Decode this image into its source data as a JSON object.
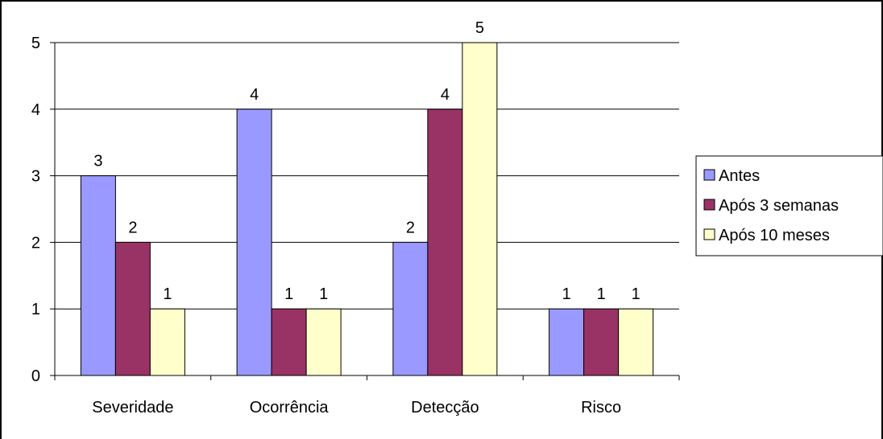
{
  "chart_data": {
    "type": "bar",
    "categories": [
      "Severidade",
      "Ocorrência",
      "Detecção",
      "Risco"
    ],
    "series": [
      {
        "name": "Antes",
        "values": [
          3,
          4,
          2,
          1
        ],
        "color": "#9999FF"
      },
      {
        "name": "Após 3 semanas",
        "values": [
          2,
          1,
          4,
          1
        ],
        "color": "#993366"
      },
      {
        "name": "Após 10 meses",
        "values": [
          1,
          1,
          5,
          1
        ],
        "color": "#FFFFCC"
      }
    ],
    "yticks": [
      "0",
      "1",
      "2",
      "3",
      "4",
      "5"
    ],
    "ylim": [
      0,
      5
    ],
    "grid": true,
    "data_labels": true,
    "legend_position": "right",
    "title": "",
    "xlabel": "",
    "ylabel": ""
  }
}
